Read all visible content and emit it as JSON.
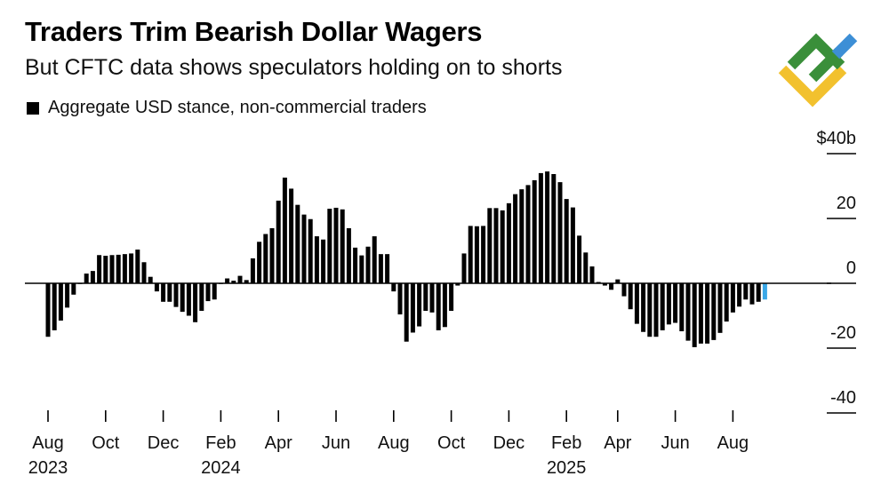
{
  "header": {
    "title": "Traders Trim Bearish Dollar Wagers",
    "subtitle": "But CFTC data shows speculators holding on to shorts"
  },
  "logo": {
    "icon": "brand-logo-icon",
    "colors": [
      "#3a8f3a",
      "#f2c12e",
      "#3d8fd6"
    ]
  },
  "chart_data": {
    "type": "bar",
    "title": "Traders Trim Bearish Dollar Wagers",
    "subtitle": "But CFTC data shows speculators holding on to shorts",
    "legend": [
      {
        "name": "Aggregate USD stance, non-commercial traders",
        "color": "#000000"
      }
    ],
    "legend_position": "top-left",
    "ylabel": "",
    "y_unit": "$ billions",
    "ylim": [
      -45,
      45
    ],
    "yticks": [
      {
        "value": 40,
        "label": "$40b"
      },
      {
        "value": 20,
        "label": "20"
      },
      {
        "value": 0,
        "label": "0"
      },
      {
        "value": -20,
        "label": "-20"
      },
      {
        "value": -40,
        "label": "-40"
      }
    ],
    "grid": "right-side tick marks",
    "xticks": [
      {
        "index": 0,
        "label": "Aug",
        "year": "2023"
      },
      {
        "index": 9,
        "label": "Oct",
        "year": ""
      },
      {
        "index": 18,
        "label": "Dec",
        "year": ""
      },
      {
        "index": 27,
        "label": "Feb",
        "year": "2024"
      },
      {
        "index": 36,
        "label": "Apr",
        "year": ""
      },
      {
        "index": 45,
        "label": "Jun",
        "year": ""
      },
      {
        "index": 54,
        "label": "Aug",
        "year": ""
      },
      {
        "index": 63,
        "label": "Oct",
        "year": ""
      },
      {
        "index": 72,
        "label": "Dec",
        "year": ""
      },
      {
        "index": 81,
        "label": "Feb",
        "year": "2025"
      },
      {
        "index": 89,
        "label": "Apr",
        "year": ""
      },
      {
        "index": 98,
        "label": "Jun",
        "year": ""
      },
      {
        "index": 107,
        "label": "Aug",
        "year": ""
      }
    ],
    "colors": {
      "bar": "#000000",
      "highlight": "#3aa8e8",
      "axis": "#000000"
    },
    "highlight_last": true,
    "values": [
      -16.5,
      -14.5,
      -11.5,
      -7.5,
      -3.5,
      0,
      3,
      3.8,
      8.7,
      8.5,
      8.7,
      8.8,
      9,
      9.2,
      10.4,
      6.5,
      2,
      -2.5,
      -5.7,
      -5.7,
      -7.3,
      -8.8,
      -10,
      -12,
      -8.5,
      -5.5,
      -5,
      0,
      1.5,
      0.8,
      2.3,
      1,
      7.7,
      12.8,
      15.2,
      17,
      25.5,
      32.6,
      29.2,
      24.2,
      21.2,
      19.8,
      14.5,
      13.5,
      23,
      23.3,
      22.8,
      17,
      11,
      8.6,
      11.3,
      14.5,
      9,
      9,
      -2.5,
      -9.6,
      -18,
      -15.2,
      -13.3,
      -8.5,
      -9,
      -14.5,
      -13.5,
      -8.5,
      -0.7,
      9.2,
      17.7,
      17.6,
      17.7,
      23.2,
      23.2,
      22.5,
      24.7,
      27.5,
      29,
      30.3,
      31.8,
      34,
      34.5,
      33.7,
      31.2,
      26,
      23.4,
      14.7,
      9.5,
      5.2,
      0.4,
      -0.7,
      -2,
      1.2,
      -4,
      -8,
      -12.5,
      -15,
      -16.5,
      -16.5,
      -14.5,
      -12.7,
      -12.2,
      -14.8,
      -17.7,
      -19.7,
      -18.6,
      -18.6,
      -17.5,
      -15.3,
      -11.8,
      -9,
      -7.2,
      -5,
      -6.5,
      -5.7,
      -5
    ]
  }
}
